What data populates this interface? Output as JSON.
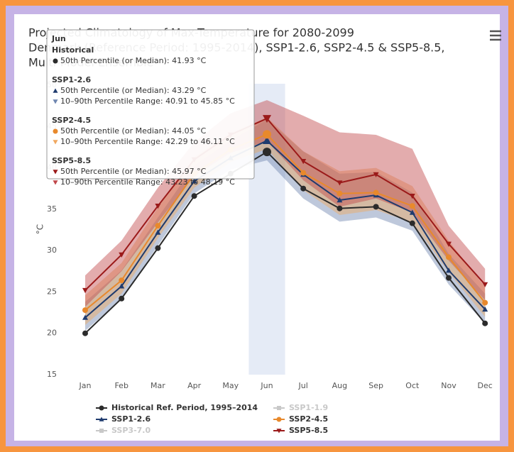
{
  "chart_data": {
    "type": "line",
    "title_lines": [
      "Projected Climatology of Max-Temperature for 2080-2099",
      "Denmark (Reference Period: 1995-2014), SSP1-2.6, SSP2-4.5 & SSP5-8.5,",
      "Multi-Model Ensemble"
    ],
    "y_label": "°C",
    "categories": [
      "Jan",
      "Feb",
      "Mar",
      "Apr",
      "May",
      "Jun",
      "Jul",
      "Aug",
      "Sep",
      "Oct",
      "Nov",
      "Dec"
    ],
    "highlight_category": "Jun",
    "ylim": [
      15,
      50
    ],
    "yticks": [
      15,
      20,
      25,
      30,
      35,
      40,
      45,
      50
    ],
    "grid": false,
    "series": [
      {
        "name": "Historical Ref. Period, 1995–2014",
        "color": "#2b2b2b",
        "marker": "circle",
        "values": [
          20.0,
          24.2,
          30.3,
          36.6,
          39.3,
          41.93,
          37.5,
          35.1,
          35.3,
          33.3,
          26.7,
          21.2
        ]
      },
      {
        "name": "SSP1-2.6",
        "color": "#1f3b6e",
        "marker": "triangle",
        "band_color": "#6f86b0",
        "values": [
          21.9,
          25.7,
          32.2,
          38.4,
          41.2,
          43.29,
          39.2,
          36.1,
          36.7,
          34.6,
          27.6,
          22.9
        ],
        "range_low": [
          20.3,
          24.1,
          30.6,
          36.9,
          39.8,
          40.91,
          36.3,
          33.5,
          34.0,
          32.4,
          25.9,
          21.2
        ],
        "range_high": [
          23.8,
          27.6,
          34.0,
          40.3,
          43.3,
          45.85,
          42.0,
          39.3,
          39.5,
          37.0,
          29.6,
          24.8
        ]
      },
      {
        "name": "SSP2-4.5",
        "color": "#e8892c",
        "marker": "circle",
        "band_color": "#f0a860",
        "values": [
          22.8,
          26.4,
          33.0,
          39.3,
          42.2,
          44.05,
          39.4,
          36.9,
          37.0,
          35.4,
          29.2,
          23.7
        ],
        "range_low": [
          21.0,
          24.8,
          31.5,
          37.6,
          40.7,
          42.29,
          37.3,
          34.3,
          34.9,
          33.4,
          27.4,
          22.0
        ],
        "range_high": [
          24.6,
          28.5,
          35.2,
          41.3,
          44.2,
          46.11,
          42.0,
          39.6,
          40.0,
          37.8,
          31.2,
          25.6
        ]
      },
      {
        "name": "SSP5-8.5",
        "color": "#9b1a1a",
        "marker": "triangle-down",
        "band_color": "#c0474a",
        "values": [
          25.2,
          29.5,
          35.4,
          41.0,
          44.0,
          45.97,
          40.8,
          38.2,
          39.2,
          36.6,
          30.8,
          25.9
        ],
        "range_low": [
          23.2,
          27.5,
          33.4,
          39.0,
          41.8,
          43.23,
          38.5,
          35.3,
          36.3,
          34.6,
          28.8,
          24.0
        ],
        "range_high": [
          27.0,
          31.2,
          37.6,
          43.1,
          46.6,
          48.19,
          46.3,
          44.3,
          44.0,
          42.3,
          33.0,
          27.8
        ]
      }
    ],
    "hidden_series": [
      {
        "name": "SSP1-1.9",
        "color": "#c8c8c8"
      },
      {
        "name": "SSP3-7.0",
        "color": "#c8c8c8"
      }
    ],
    "tooltip": {
      "category": "Jun",
      "sections": [
        {
          "title": "Historical",
          "lines": [
            "50th Percentile (or Median): 41.93 °C"
          ]
        },
        {
          "title": "SSP1-2.6",
          "lines": [
            "50th Percentile (or Median): 43.29 °C",
            "10–90th Percentile Range: 40.91 to 45.85 °C"
          ]
        },
        {
          "title": "SSP2-4.5",
          "lines": [
            "50th Percentile (or Median): 44.05 °C",
            "10–90th Percentile Range: 42.29 to 46.11 °C"
          ]
        },
        {
          "title": "SSP5-8.5",
          "lines": [
            "50th Percentile (or Median): 45.97 °C",
            "10–90th Percentile Range: 43.23 to 48.19 °C"
          ]
        }
      ]
    }
  }
}
